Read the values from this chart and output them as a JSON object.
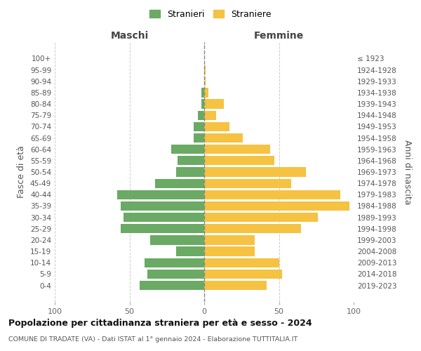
{
  "age_groups": [
    "0-4",
    "5-9",
    "10-14",
    "15-19",
    "20-24",
    "25-29",
    "30-34",
    "35-39",
    "40-44",
    "45-49",
    "50-54",
    "55-59",
    "60-64",
    "65-69",
    "70-74",
    "75-79",
    "80-84",
    "85-89",
    "90-94",
    "95-99",
    "100+"
  ],
  "birth_years": [
    "2019-2023",
    "2014-2018",
    "2009-2013",
    "2004-2008",
    "1999-2003",
    "1994-1998",
    "1989-1993",
    "1984-1988",
    "1979-1983",
    "1974-1978",
    "1969-1973",
    "1964-1968",
    "1959-1963",
    "1954-1958",
    "1949-1953",
    "1944-1948",
    "1939-1943",
    "1934-1938",
    "1929-1933",
    "1924-1928",
    "≤ 1923"
  ],
  "males": [
    43,
    38,
    40,
    19,
    36,
    56,
    54,
    56,
    58,
    33,
    19,
    18,
    22,
    7,
    7,
    4,
    2,
    2,
    0,
    0,
    0
  ],
  "females": [
    42,
    52,
    50,
    34,
    34,
    65,
    76,
    97,
    91,
    58,
    68,
    47,
    44,
    26,
    17,
    8,
    13,
    3,
    1,
    1,
    0
  ],
  "male_color": "#6aaa64",
  "female_color": "#f5c242",
  "background_color": "#ffffff",
  "grid_color": "#cccccc",
  "title": "Popolazione per cittadinanza straniera per età e sesso - 2024",
  "subtitle": "COMUNE DI TRADATE (VA) - Dati ISTAT al 1° gennaio 2024 - Elaborazione TUTTITALIA.IT",
  "xlabel_left": "Maschi",
  "xlabel_right": "Femmine",
  "ylabel_left": "Fasce di età",
  "ylabel_right": "Anni di nascita",
  "legend_male": "Stranieri",
  "legend_female": "Straniere",
  "xlim": 100
}
